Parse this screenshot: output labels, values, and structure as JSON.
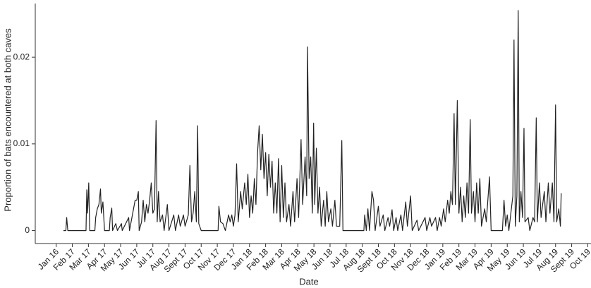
{
  "chart_data": {
    "type": "line",
    "xlabel": "Date",
    "ylabel": "Proportion of bats encountered at both caves",
    "color": "#222222",
    "xlim": [
      -1.3,
      33.2
    ],
    "ylim": [
      -0.0015,
      0.0262
    ],
    "yticks": [
      0,
      0.01,
      0.02
    ],
    "xticks": [
      {
        "value": 0,
        "label": "Jan 16"
      },
      {
        "value": 1,
        "label": "Feb 17"
      },
      {
        "value": 2,
        "label": "Mar 17"
      },
      {
        "value": 3,
        "label": "Apr 17"
      },
      {
        "value": 4,
        "label": "May 17"
      },
      {
        "value": 5,
        "label": "Jun 17"
      },
      {
        "value": 6,
        "label": "Jul 17"
      },
      {
        "value": 7,
        "label": "Aug 17"
      },
      {
        "value": 8,
        "label": "Sept 17"
      },
      {
        "value": 9,
        "label": "Oct 17"
      },
      {
        "value": 10,
        "label": "Nov 17"
      },
      {
        "value": 11,
        "label": "Dec 17"
      },
      {
        "value": 12,
        "label": "Jan 18"
      },
      {
        "value": 13,
        "label": "Feb 18"
      },
      {
        "value": 14,
        "label": "Mar 18"
      },
      {
        "value": 15,
        "label": "Apr 18"
      },
      {
        "value": 16,
        "label": "May 18"
      },
      {
        "value": 17,
        "label": "Jun 18"
      },
      {
        "value": 18,
        "label": "Jul 18"
      },
      {
        "value": 19,
        "label": "Aug 18"
      },
      {
        "value": 20,
        "label": "Sept 18"
      },
      {
        "value": 21,
        "label": "Oct 18"
      },
      {
        "value": 22,
        "label": "Nov 18"
      },
      {
        "value": 23,
        "label": "Dec 18"
      },
      {
        "value": 24,
        "label": "Jan 19"
      },
      {
        "value": 25,
        "label": "Feb 19"
      },
      {
        "value": 26,
        "label": "Mar 19"
      },
      {
        "value": 27,
        "label": "Apr 19"
      },
      {
        "value": 28,
        "label": "May 19"
      },
      {
        "value": 29,
        "label": "Jun 19"
      },
      {
        "value": 30,
        "label": "Jul 19"
      },
      {
        "value": 31,
        "label": "Aug 19"
      },
      {
        "value": 32,
        "label": "Sept 19"
      },
      {
        "value": 33,
        "label": "Oct 19"
      }
    ],
    "x": [
      0.45,
      0.6,
      0.65,
      0.72,
      1.85,
      1.9,
      1.95,
      2.02,
      2.08,
      2.4,
      2.45,
      2.55,
      2.65,
      2.75,
      2.8,
      2.9,
      3.0,
      3.3,
      3.35,
      3.45,
      3.5,
      3.7,
      3.8,
      4.05,
      4.1,
      4.5,
      4.55,
      4.9,
      5.0,
      5.1,
      5.15,
      5.3,
      5.4,
      5.5,
      5.6,
      5.7,
      5.8,
      5.9,
      6.0,
      6.1,
      6.2,
      6.27,
      6.35,
      6.45,
      6.6,
      6.7,
      6.9,
      7.0,
      7.3,
      7.4,
      7.6,
      7.7,
      7.9,
      8.0,
      8.2,
      8.3,
      8.4,
      8.5,
      8.6,
      8.7,
      8.78,
      8.85,
      9.0,
      10.05,
      10.1,
      10.2,
      10.35,
      10.5,
      10.7,
      10.8,
      10.9,
      11.0,
      11.1,
      11.2,
      11.3,
      11.45,
      11.55,
      11.7,
      11.8,
      11.9,
      12.0,
      12.1,
      12.2,
      12.3,
      12.4,
      12.5,
      12.6,
      12.7,
      12.8,
      12.9,
      13.0,
      13.1,
      13.2,
      13.3,
      13.4,
      13.5,
      13.6,
      13.7,
      13.8,
      13.9,
      14.0,
      14.1,
      14.2,
      14.3,
      14.45,
      14.55,
      14.7,
      14.8,
      14.95,
      15.05,
      15.2,
      15.3,
      15.45,
      15.55,
      15.6,
      15.7,
      15.8,
      15.9,
      15.98,
      16.05,
      16.15,
      16.25,
      16.35,
      16.45,
      16.6,
      16.7,
      16.8,
      16.9,
      17.05,
      17.15,
      17.3,
      17.4,
      17.6,
      17.73,
      17.8,
      19.1,
      19.15,
      19.25,
      19.35,
      19.45,
      19.6,
      19.7,
      19.8,
      20.0,
      20.1,
      20.3,
      20.4,
      20.6,
      20.7,
      20.85,
      20.95,
      21.1,
      21.2,
      21.4,
      21.5,
      21.7,
      21.8,
      22.0,
      22.1,
      22.4,
      22.5,
      22.9,
      23.0,
      23.2,
      23.3,
      23.55,
      23.65,
      23.8,
      23.9,
      24.05,
      24.15,
      24.3,
      24.4,
      24.5,
      24.6,
      24.7,
      24.78,
      24.9,
      25.0,
      25.1,
      25.2,
      25.3,
      25.4,
      25.5,
      25.6,
      25.7,
      25.78,
      25.9,
      26.0,
      26.1,
      26.2,
      26.3,
      26.4,
      26.6,
      26.7,
      26.9,
      27.0,
      27.7,
      27.8,
      27.9,
      28.0,
      28.1,
      28.35,
      28.42,
      28.5,
      28.6,
      28.68,
      28.75,
      28.85,
      28.95,
      29.04,
      29.1,
      29.3,
      29.4,
      29.6,
      29.7,
      29.8,
      29.87,
      30.0,
      30.1,
      30.3,
      30.4,
      30.55,
      30.65,
      30.8,
      30.9,
      31.0,
      31.07,
      31.2,
      31.3,
      31.35
    ],
    "values": [
      0,
      0,
      0.0015,
      0,
      0,
      0.0047,
      0.002,
      0.0055,
      0,
      0,
      0.0015,
      0.0025,
      0.003,
      0.0048,
      0.002,
      0.0033,
      0,
      0,
      0.0015,
      0.0026,
      0,
      0.0008,
      0,
      0.0008,
      0,
      0.0015,
      0,
      0.0035,
      0.0035,
      0.0045,
      0,
      0.001,
      0.0035,
      0.001,
      0.003,
      0.002,
      0.0035,
      0.0055,
      0.002,
      0.0025,
      0.0127,
      0.001,
      0.0045,
      0.001,
      0.0018,
      0,
      0.003,
      0,
      0.0018,
      0,
      0.0018,
      0.0005,
      0.0018,
      0.0005,
      0.0018,
      0.0075,
      0.001,
      0.002,
      0.0045,
      0.001,
      0.0121,
      0.0008,
      0,
      0,
      0.0028,
      0.001,
      0.0008,
      0,
      0.0018,
      0.001,
      0.0018,
      0.0005,
      0.0018,
      0.0077,
      0.001,
      0.0045,
      0.0025,
      0.0055,
      0.003,
      0.0065,
      0.0015,
      0.004,
      0.002,
      0.006,
      0.003,
      0.009,
      0.0121,
      0.007,
      0.0111,
      0.006,
      0.009,
      0.004,
      0.0088,
      0.005,
      0.008,
      0.002,
      0.0055,
      0.002,
      0.0083,
      0.001,
      0.0075,
      0.0015,
      0.0055,
      0.001,
      0.003,
      0.0005,
      0.0045,
      0.001,
      0.006,
      0.0015,
      0.0105,
      0.003,
      0.0085,
      0.004,
      0.0212,
      0.006,
      0.0085,
      0.002,
      0.0124,
      0.003,
      0.0095,
      0.002,
      0.005,
      0.0005,
      0.0035,
      0.0005,
      0.0045,
      0.001,
      0.0025,
      0.0005,
      0.0035,
      0.0005,
      0.0005,
      0.0104,
      0,
      0,
      0.0018,
      0,
      0.0025,
      0,
      0.0045,
      0.0035,
      0,
      0.0028,
      0.0005,
      0.0018,
      0,
      0.0015,
      0.0005,
      0.0024,
      0,
      0.0015,
      0,
      0.0018,
      0,
      0.0033,
      0.0005,
      0.004,
      0,
      0.0012,
      0,
      0.0015,
      0,
      0.0015,
      0.0005,
      0.0015,
      0,
      0.0015,
      0.0005,
      0.0025,
      0.001,
      0.0035,
      0.002,
      0.0045,
      0.003,
      0.0135,
      0.003,
      0.015,
      0.002,
      0.005,
      0.001,
      0.004,
      0.0015,
      0.0055,
      0.002,
      0.0128,
      0.002,
      0.0045,
      0.001,
      0.0055,
      0.002,
      0.006,
      0.0005,
      0.0025,
      0.001,
      0.0062,
      0,
      0,
      0.0035,
      0.0005,
      0.0018,
      0,
      0.004,
      0.022,
      0.0005,
      0.004,
      0.0254,
      0.001,
      0.0045,
      0.0015,
      0.0118,
      0.001,
      0.0015,
      0,
      0.0015,
      0.001,
      0.013,
      0.001,
      0.0055,
      0.0015,
      0.0045,
      0.001,
      0.0055,
      0.002,
      0.0055,
      0.001,
      0.0145,
      0.001,
      0.0025,
      0.0005,
      0.0043
    ]
  }
}
